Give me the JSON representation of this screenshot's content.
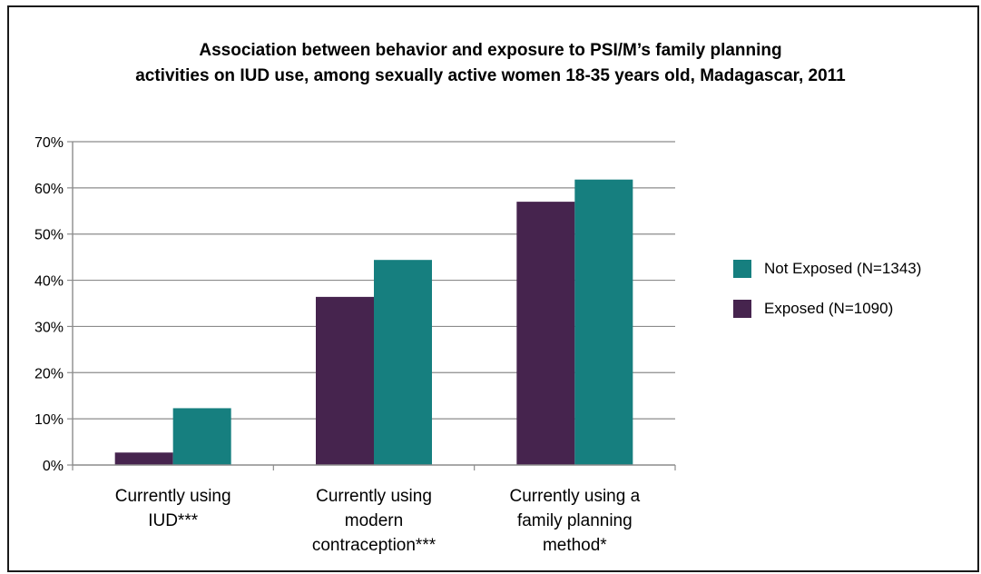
{
  "chart_data": {
    "type": "bar",
    "title_lines": [
      "Association between behavior and exposure to PSI/M’s family planning",
      "activities on IUD use, among sexually active women 18-35 years old, Madagascar, 2011"
    ],
    "categories": [
      [
        "Currently using",
        "IUD***"
      ],
      [
        "Currently using",
        "modern",
        "contraception***"
      ],
      [
        "Currently using a",
        "family planning",
        "method*"
      ]
    ],
    "series": [
      {
        "name": "Exposed (N=1090)",
        "color": "#46244e",
        "values": [
          2.7,
          36.4,
          57.0
        ]
      },
      {
        "name": "Not Exposed (N=1343)",
        "color": "#167f7f",
        "values": [
          12.3,
          44.4,
          61.8
        ]
      }
    ],
    "legend_order": [
      1,
      0
    ],
    "yticks": [
      "0%",
      "10%",
      "20%",
      "30%",
      "40%",
      "50%",
      "60%",
      "70%"
    ],
    "ylim": [
      0,
      70
    ],
    "grid": true,
    "legend_position": "right"
  }
}
